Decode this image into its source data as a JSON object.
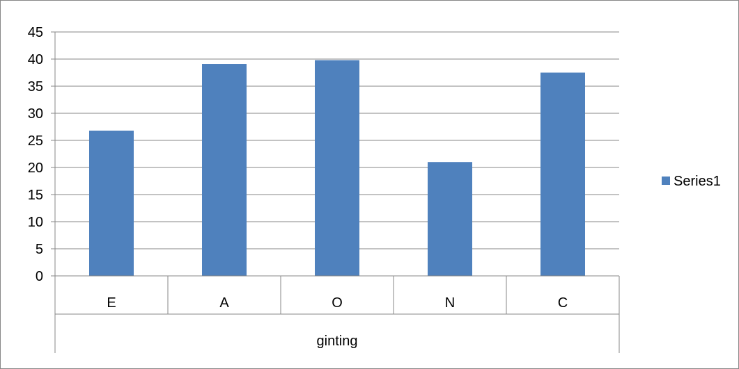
{
  "chart_data": {
    "type": "bar",
    "group_label": "ginting",
    "categories": [
      "E",
      "A",
      "O",
      "N",
      "C"
    ],
    "series": [
      {
        "name": "Series1",
        "values": [
          26.8,
          39.1,
          39.8,
          21.0,
          37.5
        ]
      }
    ],
    "ylim": [
      0,
      45
    ],
    "yticks": [
      0,
      5,
      10,
      15,
      20,
      25,
      30,
      35,
      40,
      45
    ],
    "grid": true,
    "legend_position": "right",
    "colors": {
      "bar": "#4F81BD",
      "grid": "#878787",
      "axis": "#878787",
      "border": "#878787"
    }
  }
}
